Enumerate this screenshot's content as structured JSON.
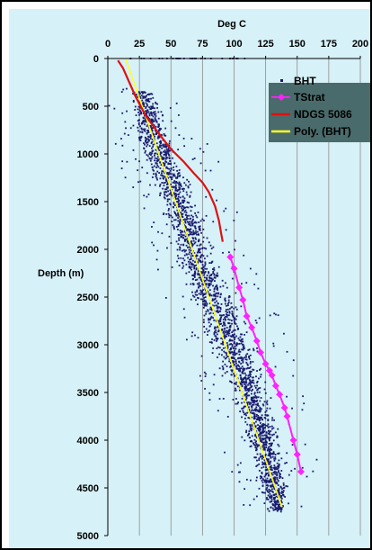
{
  "chart_data": {
    "type": "scatter",
    "title": "",
    "xlabel": "Deg C",
    "ylabel": "Depth (m)",
    "x_axis_position": "top",
    "y_axis_inverted": true,
    "xlim": [
      0,
      200
    ],
    "ylim": [
      0,
      5000
    ],
    "x_ticks": [
      "0",
      "25",
      "50",
      "75",
      "100",
      "125",
      "150",
      "175",
      "200"
    ],
    "y_ticks": [
      "0",
      "500",
      "1000",
      "1500",
      "2000",
      "2500",
      "3000",
      "3500",
      "4000",
      "4500",
      "5000"
    ],
    "grid": "vertical",
    "legend_position": "top-right",
    "colors": {
      "background": "#d6f1f7",
      "bht": "#1a1a6e",
      "tstrat": "#ff22ff",
      "ndgs": "#dd1111",
      "poly": "#ffff22",
      "legend_box": "#4a6b6b"
    },
    "series": [
      {
        "name": "BHT",
        "kind": "scatter",
        "trend": {
          "x0": 14,
          "y0": 0,
          "x1": 137,
          "y1": 4700
        },
        "band_x": [
          {
            "depth": 400,
            "lo": 18,
            "hi": 38
          },
          {
            "depth": 800,
            "lo": 20,
            "hi": 52
          },
          {
            "depth": 1500,
            "lo": 38,
            "hi": 72
          },
          {
            "depth": 2200,
            "lo": 55,
            "hi": 90
          },
          {
            "depth": 2800,
            "lo": 72,
            "hi": 112
          },
          {
            "depth": 3500,
            "lo": 95,
            "hi": 130
          },
          {
            "depth": 4200,
            "lo": 112,
            "hi": 142
          },
          {
            "depth": 4700,
            "lo": 125,
            "hi": 145
          }
        ]
      },
      {
        "name": "TStrat",
        "kind": "line-marker",
        "x": [
          97,
          100,
          104,
          107,
          110,
          114,
          118,
          121,
          125,
          128,
          130,
          133,
          136,
          140,
          142,
          147,
          150,
          153
        ],
        "y": [
          2080,
          2200,
          2400,
          2530,
          2700,
          2820,
          2960,
          3080,
          3200,
          3270,
          3320,
          3430,
          3520,
          3660,
          3750,
          4000,
          4150,
          4330
        ]
      },
      {
        "name": "NDGS 5086",
        "kind": "line",
        "x": [
          8,
          12,
          17,
          22,
          30,
          40,
          50,
          60,
          68,
          75,
          80,
          85,
          88,
          90,
          91
        ],
        "y": [
          20,
          100,
          250,
          400,
          600,
          780,
          950,
          1080,
          1200,
          1300,
          1400,
          1550,
          1700,
          1850,
          1920
        ]
      },
      {
        "name": "Poly. (BHT)",
        "kind": "line",
        "x": [
          14,
          138
        ],
        "y": [
          0,
          4700
        ]
      }
    ]
  }
}
